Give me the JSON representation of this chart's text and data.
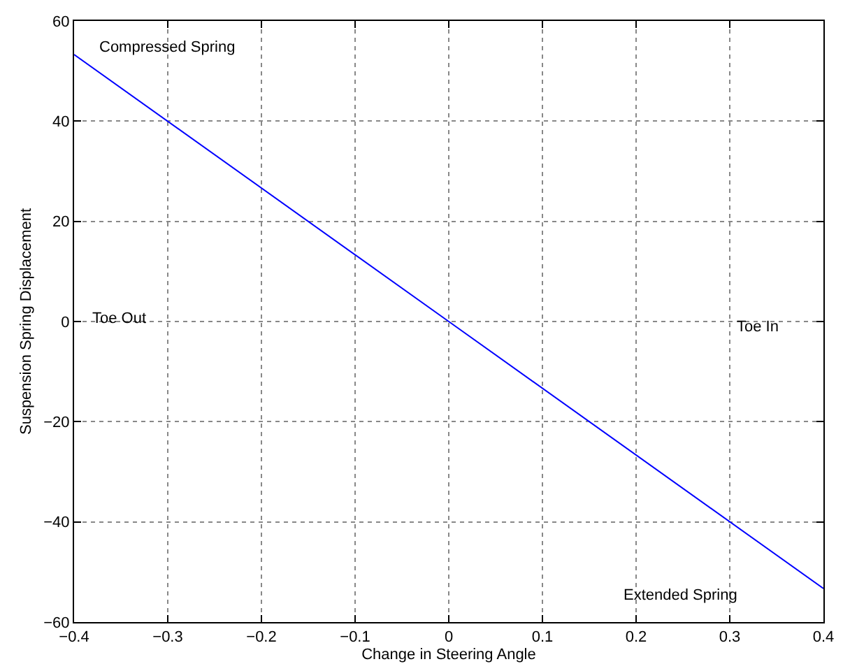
{
  "chart_data": {
    "type": "line",
    "xlabel": "Change in Steering Angle",
    "ylabel": "Suspension Spring Displacement",
    "x": [
      -0.4,
      0,
      0.4
    ],
    "series": [
      {
        "color": "#0000ff",
        "values": [
          53.3,
          0,
          -53.3
        ]
      }
    ],
    "xlim": [
      -0.4,
      0.4
    ],
    "xticks": [
      {
        "value": -0.4,
        "label": "−0.4"
      },
      {
        "value": -0.3,
        "label": "−0.3"
      },
      {
        "value": -0.2,
        "label": "−0.2"
      },
      {
        "value": -0.1,
        "label": "−0.1"
      },
      0,
      0.1,
      0.2,
      0.3,
      0.4
    ],
    "ylim": [
      -60,
      60
    ],
    "yticks": [
      {
        "value": -60,
        "label": "−60"
      },
      {
        "value": -40,
        "label": "−40"
      },
      {
        "value": -20,
        "label": "−20"
      },
      0,
      20,
      40,
      60
    ],
    "grid": true,
    "marker": "none",
    "line_style": "solid",
    "annotations": [
      "Compressed Spring",
      "Toe Out",
      "Toe In",
      "Extended Spring"
    ]
  }
}
